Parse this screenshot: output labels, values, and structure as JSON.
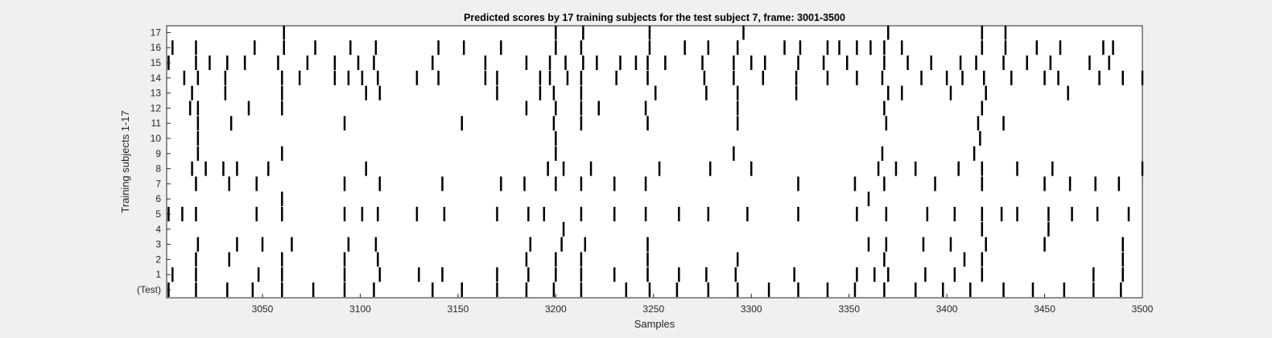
{
  "chart_data": {
    "type": "scatter",
    "title": "Predicted scores by 17 training subjects for the test subject 7, frame: 3001-3500",
    "xlabel": "Samples",
    "ylabel": "Training subjects 1-17",
    "xlim": [
      3001,
      3500
    ],
    "xticks": [
      3050,
      3100,
      3150,
      3200,
      3250,
      3300,
      3350,
      3400,
      3450,
      3500
    ],
    "ytick_labels": [
      "(Test)",
      "1",
      "2",
      "3",
      "4",
      "5",
      "6",
      "7",
      "8",
      "9",
      "10",
      "11",
      "12",
      "13",
      "14",
      "15",
      "16",
      "17"
    ],
    "grid": false,
    "marker_color": "#000000",
    "background_color": "#f0f0f0",
    "plot_background": "#ffffff",
    "series": [
      {
        "row": "(Test)",
        "x": [
          3002,
          3016,
          3032,
          3045,
          3060,
          3076,
          3092,
          3107,
          3137,
          3152,
          3170,
          3185,
          3199,
          3213,
          3236,
          3248,
          3262,
          3278,
          3293,
          3309,
          3324,
          3339,
          3353,
          3368,
          3384,
          3398,
          3412,
          3429,
          3444,
          3460,
          3475,
          3489
        ]
      },
      {
        "row": "1",
        "x": [
          3004,
          3016,
          3048,
          3060,
          3092,
          3110,
          3130,
          3142,
          3170,
          3186,
          3200,
          3213,
          3230,
          3247,
          3263,
          3277,
          3292,
          3322,
          3354,
          3363,
          3370,
          3389,
          3404,
          3418,
          3475,
          3490
        ]
      },
      {
        "row": "2",
        "x": [
          3016,
          3033,
          3060,
          3092,
          3109,
          3185,
          3200,
          3213,
          3247,
          3293,
          3368,
          3409,
          3418,
          3490
        ]
      },
      {
        "row": "3",
        "x": [
          3017,
          3037,
          3050,
          3065,
          3094,
          3108,
          3187,
          3203,
          3215,
          3247,
          3360,
          3369,
          3388,
          3402,
          3420,
          3450,
          3490
        ]
      },
      {
        "row": "4",
        "x": [
          3204,
          3418,
          3452
        ]
      },
      {
        "row": "5",
        "x": [
          3002,
          3009,
          3016,
          3047,
          3060,
          3092,
          3101,
          3109,
          3129,
          3143,
          3170,
          3186,
          3194,
          3213,
          3230,
          3246,
          3263,
          3278,
          3298,
          3324,
          3354,
          3369,
          3390,
          3404,
          3418,
          3428,
          3436,
          3452,
          3464,
          3477,
          3493
        ]
      },
      {
        "row": "6",
        "x": [
          3060,
          3360
        ]
      },
      {
        "row": "7",
        "x": [
          3016,
          3033,
          3047,
          3092,
          3110,
          3142,
          3172,
          3184,
          3200,
          3213,
          3230,
          3246,
          3324,
          3353,
          3368,
          3394,
          3418,
          3450,
          3463,
          3476,
          3488
        ]
      },
      {
        "row": "8",
        "x": [
          3014,
          3021,
          3030,
          3037,
          3053,
          3103,
          3196,
          3204,
          3218,
          3253,
          3279,
          3300,
          3365,
          3374,
          3384,
          3406,
          3418,
          3436,
          3454,
          3500
        ]
      },
      {
        "row": "9",
        "x": [
          3017,
          3060,
          3200,
          3291,
          3367,
          3414
        ]
      },
      {
        "row": "10",
        "x": [
          3017,
          3200,
          3417
        ]
      },
      {
        "row": "11",
        "x": [
          3017,
          3034,
          3092,
          3152,
          3199,
          3213,
          3247,
          3293,
          3369,
          3416,
          3429
        ]
      },
      {
        "row": "12",
        "x": [
          3013,
          3017,
          3043,
          3060,
          3185,
          3200,
          3213,
          3222,
          3246,
          3293,
          3368,
          3418
        ]
      },
      {
        "row": "13",
        "x": [
          3014,
          3031,
          3060,
          3103,
          3110,
          3170,
          3192,
          3199,
          3213,
          3251,
          3277,
          3293,
          3323,
          3370,
          3377,
          3402,
          3420,
          3462
        ]
      },
      {
        "row": "14",
        "x": [
          3010,
          3017,
          3031,
          3060,
          3069,
          3087,
          3094,
          3101,
          3109,
          3129,
          3140,
          3164,
          3170,
          3192,
          3197,
          3206,
          3213,
          3231,
          3247,
          3276,
          3291,
          3306,
          3323,
          3339,
          3354,
          3367,
          3387,
          3400,
          3408,
          3419,
          3433,
          3450,
          3457,
          3478,
          3490,
          3500
        ]
      },
      {
        "row": "15",
        "x": [
          3002,
          3016,
          3023,
          3032,
          3041,
          3058,
          3073,
          3087,
          3099,
          3107,
          3137,
          3164,
          3185,
          3197,
          3205,
          3214,
          3221,
          3233,
          3241,
          3247,
          3256,
          3275,
          3291,
          3300,
          3307,
          3324,
          3337,
          3349,
          3368,
          3380,
          3392,
          3407,
          3415,
          3429,
          3441,
          3453,
          3473,
          3483
        ]
      },
      {
        "row": "16",
        "x": [
          3004,
          3016,
          3046,
          3061,
          3077,
          3095,
          3108,
          3140,
          3153,
          3172,
          3200,
          3213,
          3248,
          3266,
          3278,
          3293,
          3317,
          3325,
          3339,
          3345,
          3354,
          3361,
          3368,
          3377,
          3418,
          3430,
          3446,
          3458,
          3480,
          3485
        ]
      },
      {
        "row": "17",
        "x": [
          3061,
          3200,
          3214,
          3248,
          3296,
          3370,
          3418,
          3430
        ]
      }
    ]
  }
}
